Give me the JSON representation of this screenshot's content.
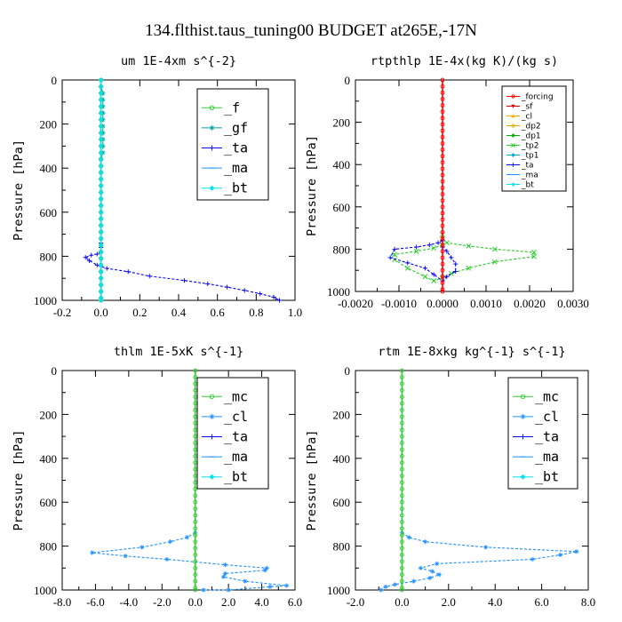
{
  "figure_title": "134.flthist.taus_tuning00  BUDGET at265E,-17N",
  "chart_data": [
    {
      "type": "line",
      "title": "um   1E-4xm s^{-2}",
      "ylabel": "Pressure [hPa]",
      "xlim": [
        -0.2,
        1.0
      ],
      "ylim": [
        1000,
        0
      ],
      "xticks": [
        "-0.2",
        "0.0",
        "0.2",
        "0.4",
        "0.6",
        "0.8",
        "1.0"
      ],
      "yticks": [
        "0",
        "200",
        "400",
        "600",
        "800",
        "1000"
      ],
      "legend_position": "top-right",
      "series": [
        {
          "name": "_f",
          "color": "#33cc33",
          "marker": "circle",
          "x": [
            0,
            0,
            0,
            0,
            0,
            0,
            0,
            0,
            0,
            0,
            0,
            0,
            0,
            0,
            0,
            0,
            0,
            0,
            0,
            0,
            0,
            0,
            0,
            0,
            0,
            0,
            0,
            0,
            0,
            0,
            0,
            0,
            0,
            0,
            0
          ],
          "y": [
            0,
            30,
            60,
            90,
            120,
            150,
            180,
            210,
            240,
            270,
            300,
            330,
            360,
            390,
            420,
            450,
            480,
            510,
            540,
            570,
            600,
            630,
            660,
            690,
            720,
            750,
            780,
            810,
            840,
            870,
            900,
            930,
            960,
            990,
            1000
          ]
        },
        {
          "name": "_gf",
          "color": "#00a0a0",
          "marker": "asterisk",
          "x": [
            0,
            0,
            0.01,
            0.01,
            0.01,
            0.01,
            0.01,
            0.01,
            0.01,
            0.01,
            0.01,
            0.01,
            0,
            0,
            0,
            0,
            0,
            0,
            0,
            0,
            0,
            0,
            0,
            0,
            0,
            0,
            0,
            0,
            0,
            0,
            0,
            0,
            0,
            0,
            0
          ],
          "y": [
            0,
            30,
            60,
            90,
            120,
            150,
            180,
            210,
            240,
            270,
            300,
            330,
            360,
            390,
            420,
            450,
            480,
            510,
            540,
            570,
            600,
            630,
            660,
            690,
            720,
            750,
            780,
            810,
            840,
            870,
            900,
            930,
            960,
            990,
            1000
          ]
        },
        {
          "name": "_ta",
          "color": "#0000ff",
          "marker": "plus",
          "x": [
            0,
            0,
            0,
            -0.02,
            -0.05,
            -0.08,
            -0.06,
            -0.02,
            0.03,
            0.14,
            0.25,
            0.43,
            0.55,
            0.65,
            0.74,
            0.82,
            0.89,
            0.92
          ],
          "y": [
            740,
            760,
            780,
            790,
            795,
            805,
            820,
            840,
            855,
            870,
            890,
            910,
            925,
            940,
            955,
            970,
            985,
            1000
          ]
        },
        {
          "name": "_ma",
          "color": "#1e90ff",
          "marker": "dash",
          "x": [
            0,
            0,
            0,
            0,
            0,
            0,
            0,
            0,
            0,
            0,
            0,
            0,
            0,
            0,
            0,
            0,
            0,
            0,
            0,
            0,
            0,
            0,
            0,
            0,
            0,
            0,
            0,
            0,
            0,
            0,
            0,
            0,
            0,
            0,
            0
          ],
          "y": [
            0,
            30,
            60,
            90,
            120,
            150,
            180,
            210,
            240,
            270,
            300,
            330,
            360,
            390,
            420,
            450,
            480,
            510,
            540,
            570,
            600,
            630,
            660,
            690,
            720,
            750,
            780,
            810,
            840,
            870,
            900,
            930,
            960,
            990,
            1000
          ]
        },
        {
          "name": "_bt",
          "color": "#00e5ee",
          "marker": "diamond",
          "x": [
            0,
            0,
            0,
            0,
            0,
            0,
            0,
            0,
            0,
            0,
            0,
            0,
            0,
            0,
            0,
            0,
            0,
            0,
            0,
            0,
            0,
            0,
            0,
            0,
            0,
            0,
            0,
            0,
            0,
            0,
            0,
            0,
            0,
            0,
            0
          ],
          "y": [
            0,
            30,
            60,
            90,
            120,
            150,
            180,
            210,
            240,
            270,
            300,
            330,
            360,
            390,
            420,
            450,
            480,
            510,
            540,
            570,
            600,
            630,
            660,
            690,
            720,
            750,
            780,
            810,
            840,
            870,
            900,
            930,
            960,
            990,
            1000
          ]
        }
      ]
    },
    {
      "type": "line",
      "title": "rtpthlp   1E-4x(kg K)/(kg s)",
      "ylabel": "Pressure [hPa]",
      "xlim": [
        -0.002,
        0.003
      ],
      "ylim": [
        1000,
        0
      ],
      "xticks": [
        "-0.0020",
        "-0.0010",
        "0.0000",
        "0.0010",
        "0.0020",
        "0.0030"
      ],
      "yticks": [
        "0",
        "200",
        "400",
        "600",
        "800",
        "1000"
      ],
      "legend_position": "top-right",
      "series": [
        {
          "name": "_forcing",
          "color": "#ff0000",
          "marker": "circle",
          "x": [
            0,
            0,
            0,
            0,
            0,
            0,
            0,
            0,
            0,
            0,
            0,
            0,
            0,
            0,
            0,
            0,
            0,
            0,
            0,
            0,
            0,
            0,
            0,
            0,
            0,
            0,
            0,
            0,
            0,
            0,
            0,
            0,
            0,
            0,
            0
          ],
          "y": [
            0,
            30,
            60,
            90,
            120,
            150,
            180,
            210,
            240,
            270,
            300,
            330,
            360,
            390,
            420,
            450,
            480,
            510,
            540,
            570,
            600,
            630,
            660,
            690,
            720,
            750,
            780,
            810,
            840,
            870,
            900,
            930,
            960,
            990,
            1000
          ]
        },
        {
          "name": "_sf",
          "color": "#dd0000",
          "marker": "triangle-down",
          "x": [],
          "y": []
        },
        {
          "name": "_cl",
          "color": "#ffaa00",
          "marker": "triangle",
          "x": [],
          "y": []
        },
        {
          "name": "_dp2",
          "color": "#ddaa00",
          "marker": "circle",
          "x": [],
          "y": []
        },
        {
          "name": "_dp1",
          "color": "#00aa00",
          "marker": "asterisk",
          "x": [],
          "y": []
        },
        {
          "name": "_tp2",
          "color": "#22cc22",
          "marker": "x",
          "x": [
            0,
            0,
            0.0001,
            0.0006,
            0.0012,
            0.0021,
            0.0021,
            0.0012,
            0.0006,
            0.0002,
            0,
            -0.0002,
            -0.0004,
            -0.0008,
            -0.0011,
            -0.0011,
            -0.0006,
            -0.0002,
            0
          ],
          "y": [
            730,
            750,
            770,
            785,
            800,
            815,
            835,
            860,
            890,
            915,
            935,
            950,
            930,
            890,
            850,
            825,
            810,
            795,
            780
          ]
        },
        {
          "name": "_tp1",
          "color": "#00aadd",
          "marker": "asterisk",
          "x": [],
          "y": []
        },
        {
          "name": "_ta",
          "color": "#0000ff",
          "marker": "plus",
          "x": [
            0,
            -0.0001,
            -0.0003,
            -0.0006,
            -0.0011,
            -0.0012,
            -0.0008,
            -0.0004,
            -0.0002,
            0,
            0.0001,
            0.0003,
            0.0003,
            0.0002,
            0.0001,
            0
          ],
          "y": [
            760,
            770,
            780,
            790,
            800,
            840,
            865,
            890,
            920,
            950,
            930,
            905,
            870,
            840,
            810,
            790
          ]
        },
        {
          "name": "_ma",
          "color": "#1e90ff",
          "marker": "dash",
          "x": [],
          "y": []
        },
        {
          "name": "_bt",
          "color": "#00e5ee",
          "marker": "diamond",
          "x": [],
          "y": []
        }
      ]
    },
    {
      "type": "line",
      "title": "thlm   1E-5xK s^{-1}",
      "ylabel": "Pressure [hPa]",
      "xlim": [
        -8,
        6
      ],
      "ylim": [
        1000,
        0
      ],
      "xticks": [
        "-8.0",
        "-6.0",
        "-4.0",
        "-2.0",
        "0.0",
        "2.0",
        "4.0",
        "6.0"
      ],
      "yticks": [
        "0",
        "200",
        "400",
        "600",
        "800",
        "1000"
      ],
      "legend_position": "top-right",
      "series": [
        {
          "name": "_mc",
          "color": "#33cc33",
          "marker": "circle",
          "x": [
            0,
            0,
            0,
            0,
            0,
            0,
            0,
            0,
            0,
            0,
            0,
            0,
            0,
            0,
            0,
            0,
            0,
            0,
            0,
            0,
            0,
            0,
            0,
            0,
            0,
            0,
            0,
            0,
            0,
            0,
            0,
            0,
            0,
            0,
            0
          ],
          "y": [
            0,
            30,
            60,
            90,
            120,
            150,
            180,
            210,
            240,
            270,
            300,
            330,
            360,
            390,
            420,
            450,
            480,
            510,
            540,
            570,
            600,
            630,
            660,
            690,
            720,
            750,
            780,
            810,
            840,
            870,
            900,
            930,
            960,
            990,
            1000
          ]
        },
        {
          "name": "_cl",
          "color": "#1e90ff",
          "marker": "asterisk",
          "x": [
            0,
            -0.5,
            -1.5,
            -3.2,
            -6.2,
            -4.2,
            -1.7,
            1.8,
            4.3,
            4.2,
            1.8,
            1.7,
            3.0,
            5.5,
            4.5,
            2.0,
            0.5
          ],
          "y": [
            740,
            760,
            780,
            805,
            830,
            845,
            860,
            885,
            900,
            910,
            925,
            940,
            960,
            980,
            985,
            1000,
            1000
          ]
        },
        {
          "name": "_ta",
          "color": "#0000ff",
          "marker": "plus",
          "x": [],
          "y": []
        },
        {
          "name": "_ma",
          "color": "#1e90ff",
          "marker": "dash",
          "x": [],
          "y": []
        },
        {
          "name": "_bt",
          "color": "#00e5ee",
          "marker": "diamond",
          "x": [],
          "y": []
        }
      ]
    },
    {
      "type": "line",
      "title": "rtm   1E-8xkg kg^{-1} s^{-1}",
      "ylabel": "Pressure [hPa]",
      "xlim": [
        -2,
        8
      ],
      "ylim": [
        1000,
        0
      ],
      "xticks": [
        "-2.0",
        "0.0",
        "2.0",
        "4.0",
        "6.0",
        "8.0"
      ],
      "yticks": [
        "0",
        "200",
        "400",
        "600",
        "800",
        "1000"
      ],
      "legend_position": "top-right",
      "series": [
        {
          "name": "_mc",
          "color": "#33cc33",
          "marker": "circle",
          "x": [
            0,
            0,
            0,
            0,
            0,
            0,
            0,
            0,
            0,
            0,
            0,
            0,
            0,
            0,
            0,
            0,
            0,
            0,
            0,
            0,
            0,
            0,
            0,
            0,
            0,
            0,
            0,
            0,
            0,
            0,
            0,
            0,
            0,
            0,
            0
          ],
          "y": [
            0,
            30,
            60,
            90,
            120,
            150,
            180,
            210,
            240,
            270,
            300,
            330,
            360,
            390,
            420,
            450,
            480,
            510,
            540,
            570,
            600,
            630,
            660,
            690,
            720,
            750,
            780,
            810,
            840,
            870,
            900,
            930,
            960,
            990,
            1000
          ]
        },
        {
          "name": "_cl",
          "color": "#1e90ff",
          "marker": "asterisk",
          "x": [
            0,
            0.3,
            1.0,
            3.6,
            7.5,
            6.8,
            5.6,
            1.5,
            0.8,
            1.3,
            1.6,
            1.2,
            0.5,
            -0.3,
            -0.7,
            -0.9
          ],
          "y": [
            740,
            760,
            780,
            805,
            825,
            840,
            860,
            880,
            900,
            915,
            930,
            945,
            960,
            975,
            985,
            1000
          ]
        },
        {
          "name": "_ta",
          "color": "#0000ff",
          "marker": "plus",
          "x": [],
          "y": []
        },
        {
          "name": "_ma",
          "color": "#1e90ff",
          "marker": "dash",
          "x": [],
          "y": []
        },
        {
          "name": "_bt",
          "color": "#00e5ee",
          "marker": "diamond",
          "x": [],
          "y": []
        }
      ]
    }
  ]
}
